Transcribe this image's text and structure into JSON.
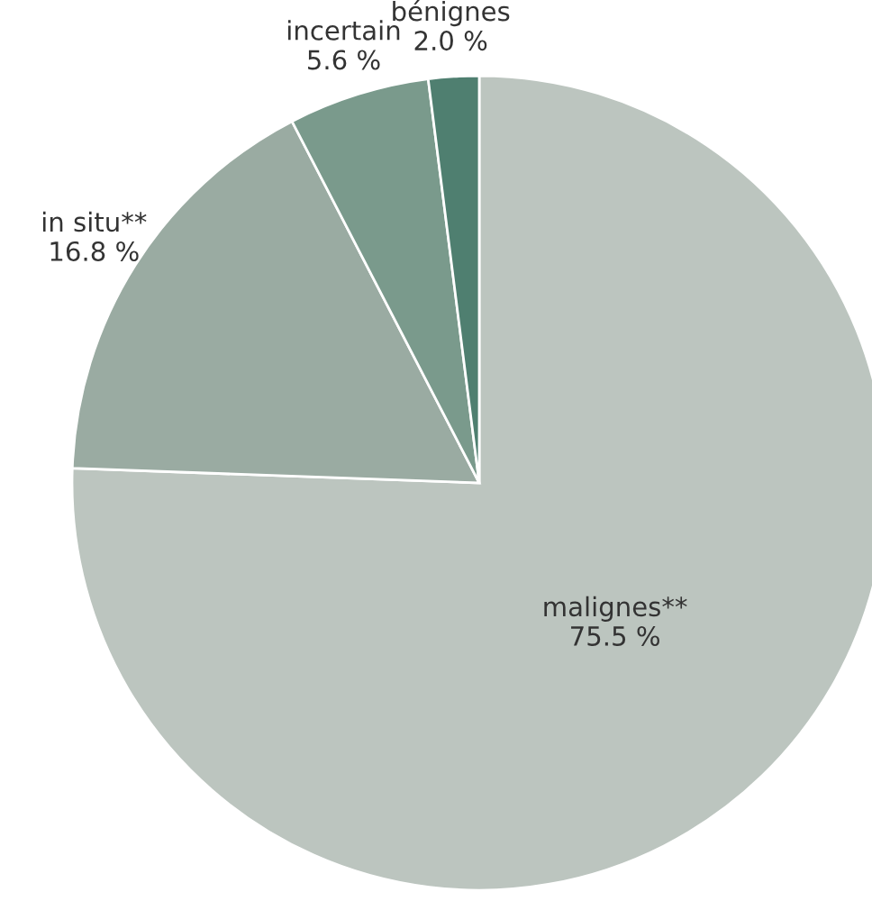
{
  "chart_data": {
    "type": "pie",
    "categories": [
      "malignes**",
      "in situ**",
      "incertain",
      "bénignes"
    ],
    "values": [
      75.5,
      16.8,
      5.6,
      2.0
    ],
    "value_labels": [
      "75.5 %",
      "16.8 %",
      "5.6 %",
      "2.0 %"
    ],
    "colors": [
      "#bcc5bf",
      "#9aaba2",
      "#7a9a8c",
      "#4f7f70"
    ],
    "legend": false
  }
}
